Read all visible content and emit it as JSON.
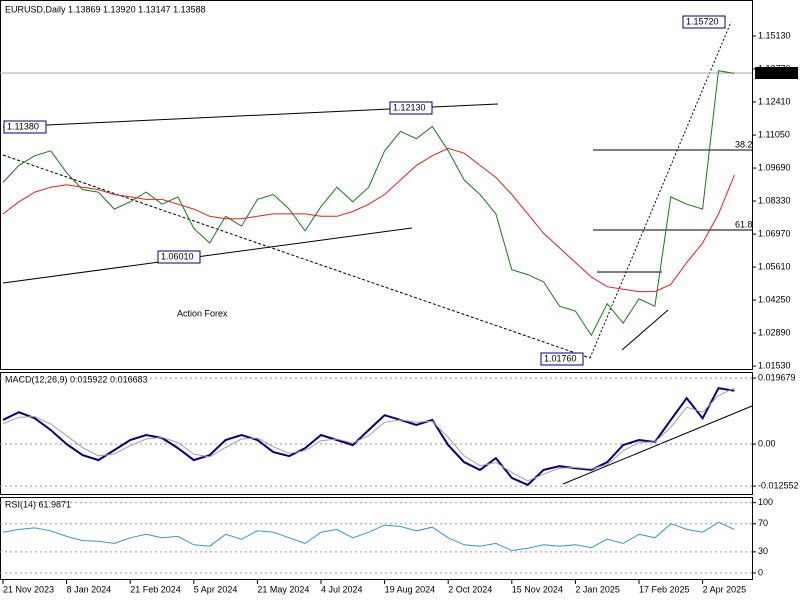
{
  "chart_data": [
    {
      "type": "line",
      "title": "EURUSD,Daily  1.13869 1.13920 1.13147 1.13588",
      "categories": [
        "21 Nov 2023",
        null,
        null,
        null,
        "8 Jan 2024",
        null,
        null,
        null,
        "21 Feb 2024",
        null,
        null,
        null,
        "5 Apr 2024",
        null,
        null,
        null,
        "21 May 2024",
        null,
        null,
        null,
        "4 Jul 2024",
        null,
        null,
        null,
        "19 Aug 2024",
        null,
        null,
        null,
        "2 Oct 2024",
        null,
        null,
        null,
        "15 Nov 2024",
        null,
        null,
        null,
        "2 Jan 2025",
        null,
        null,
        null,
        "17 Feb 2025",
        null,
        null,
        null,
        "2 Apr 2025",
        null,
        null
      ],
      "series": [
        {
          "color": "#1a7a1a",
          "values": [
            1.091,
            1.098,
            1.102,
            1.104,
            1.095,
            1.088,
            1.087,
            1.08,
            1.083,
            1.087,
            1.082,
            1.085,
            1.072,
            1.066,
            1.077,
            1.073,
            1.084,
            1.086,
            1.08,
            1.071,
            1.081,
            1.089,
            1.083,
            1.089,
            1.104,
            1.112,
            1.109,
            1.114,
            1.104,
            1.092,
            1.086,
            1.078,
            1.055,
            1.053,
            1.05,
            1.04,
            1.038,
            1.028,
            1.041,
            1.033,
            1.043,
            1.04,
            1.085,
            1.082,
            1.08,
            1.137,
            1.1359
          ]
        },
        {
          "color": "#e02020",
          "values": [
            1.078,
            1.083,
            1.087,
            1.089,
            1.09,
            1.089,
            1.088,
            1.086,
            1.085,
            1.084,
            1.084,
            1.082,
            1.08,
            1.077,
            1.076,
            1.076,
            1.077,
            1.078,
            1.078,
            1.078,
            1.077,
            1.077,
            1.079,
            1.082,
            1.086,
            1.092,
            1.098,
            1.102,
            1.105,
            1.103,
            1.098,
            1.093,
            1.086,
            1.078,
            1.07,
            1.064,
            1.058,
            1.052,
            1.048,
            1.047,
            1.046,
            1.046,
            1.049,
            1.058,
            1.066,
            1.078,
            1.094
          ]
        }
      ],
      "ylim": [
        1.0137,
        1.1653
      ],
      "yticks": [
        {
          "value": 1.0153,
          "label": "1.01530"
        },
        {
          "value": 1.0289,
          "label": "1.02890"
        },
        {
          "value": 1.0425,
          "label": "1.04250"
        },
        {
          "value": 1.0561,
          "label": "1.05610"
        },
        {
          "value": 1.0697,
          "label": "1.06970"
        },
        {
          "value": 1.0833,
          "label": "1.08330"
        },
        {
          "value": 1.0969,
          "label": "1.09690"
        },
        {
          "value": 1.1105,
          "label": "1.11050"
        },
        {
          "value": 1.1241,
          "label": "1.12410"
        },
        {
          "value": 1.1377,
          "label": "1.13770"
        },
        {
          "value": 1.1513,
          "label": "1.15130"
        }
      ],
      "grid": false,
      "annotations": [
        "1.15720",
        "1.11380",
        "1.12130",
        "1.06010",
        "1.01760",
        "1.13588",
        "38.2",
        "61.8",
        "Action Forex"
      ]
    },
    {
      "type": "line",
      "title": "MACD(12,26,9) 0.015922 0.016683",
      "series": [
        {
          "color": "#000080",
          "values": [
            0.0072,
            0.0095,
            0.0077,
            0.0042,
            0,
            -0.0033,
            -0.0048,
            -0.0018,
            0.0012,
            0.0027,
            0.0018,
            -0.0012,
            -0.0048,
            -0.0033,
            0.0012,
            0.0027,
            0.0012,
            -0.0024,
            -0.0036,
            -0.0012,
            0.0027,
            0.0012,
            -0.0003,
            0.0042,
            0.0086,
            0.0072,
            0.0057,
            0.0072,
            -0.0003,
            -0.0054,
            -0.0077,
            -0.0042,
            -0.0101,
            -0.0122,
            -0.0077,
            -0.0066,
            -0.0072,
            -0.0077,
            -0.0054,
            -0.0003,
            0.0012,
            0.0006,
            0.0072,
            0.0137,
            0.0077,
            0.0167,
            0.0159
          ]
        },
        {
          "color": "#a0a0a0",
          "values": [
            0.006,
            0.008,
            0.0082,
            0.006,
            0.0025,
            -0.001,
            -0.0035,
            -0.003,
            -0.0005,
            0.0015,
            0.002,
            0.0005,
            -0.003,
            -0.0038,
            -0.001,
            0.0015,
            0.0018,
            -0.0008,
            -0.0028,
            -0.002,
            0.001,
            0.0015,
            0.0003,
            0.0025,
            0.0065,
            0.0072,
            0.0065,
            0.0068,
            0.002,
            -0.0035,
            -0.0065,
            -0.0055,
            -0.0085,
            -0.011,
            -0.009,
            -0.0072,
            -0.007,
            -0.0074,
            -0.0062,
            -0.002,
            0.0005,
            0.0006,
            0.005,
            0.011,
            0.0095,
            0.0145,
            0.0167
          ]
        }
      ],
      "ylim": [
        -0.0152,
        0.0215
      ],
      "yticks": [
        -0.012552,
        {
          "value": 0,
          "label": "0.00"
        },
        0.019679
      ],
      "grid": true
    },
    {
      "type": "line",
      "title": "RSI(14) 61.9871",
      "series": [
        {
          "color": "#3399cc",
          "values": [
            58,
            62,
            64,
            60,
            52,
            46,
            45,
            42,
            50,
            55,
            50,
            52,
            40,
            38,
            55,
            48,
            60,
            58,
            50,
            42,
            58,
            62,
            50,
            58,
            68,
            66,
            60,
            65,
            50,
            40,
            38,
            42,
            32,
            35,
            40,
            38,
            40,
            36,
            48,
            42,
            55,
            50,
            70,
            62,
            58,
            72,
            62
          ]
        }
      ],
      "ylim": [
        -10,
        108
      ],
      "yticks": [
        0,
        30,
        70,
        100
      ],
      "grid": true
    }
  ]
}
